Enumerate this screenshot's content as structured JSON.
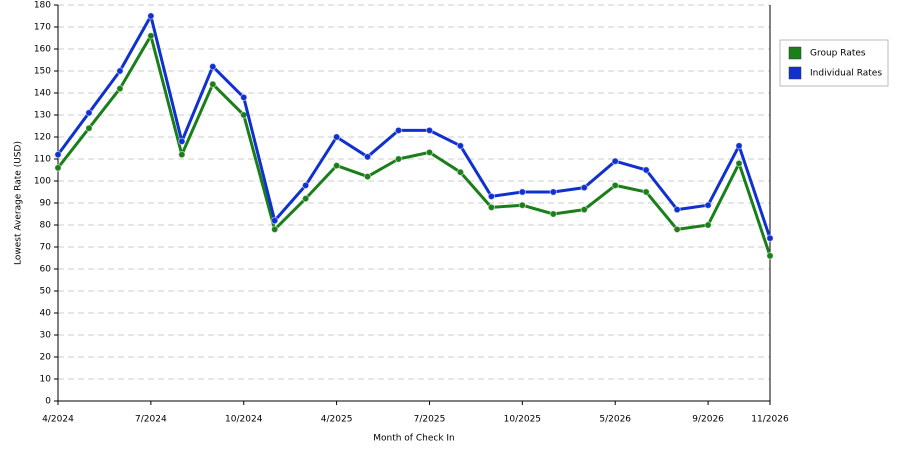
{
  "chart_data": {
    "type": "line",
    "xlabel": "Month of Check In",
    "ylabel": "Lowest Average Rate (USD)",
    "categories": [
      "4/2024",
      null,
      null,
      "7/2024",
      null,
      null,
      "10/2024",
      null,
      null,
      "4/2025",
      null,
      null,
      "7/2025",
      null,
      null,
      "10/2025",
      null,
      null,
      "5/2026",
      null,
      null,
      "9/2026",
      null,
      "11/2026"
    ],
    "series": [
      {
        "name": "Group Rates",
        "color": "#1a7f1a",
        "values": [
          106,
          124,
          142,
          166,
          112,
          144,
          130,
          78,
          92,
          107,
          102,
          110,
          113,
          104,
          88,
          89,
          85,
          87,
          98,
          95,
          78,
          80,
          108,
          66
        ]
      },
      {
        "name": "Individual Rates",
        "color": "#1030d0",
        "values": [
          112,
          131,
          150,
          175,
          118,
          152,
          138,
          82,
          98,
          120,
          111,
          123,
          123,
          116,
          93,
          95,
          95,
          97,
          109,
          105,
          87,
          89,
          116,
          74
        ]
      }
    ],
    "ylim": [
      0,
      180
    ],
    "yticks": [
      0,
      10,
      20,
      30,
      40,
      50,
      60,
      70,
      80,
      90,
      100,
      110,
      120,
      130,
      140,
      150,
      160,
      170,
      180
    ],
    "grid": true,
    "legend": "right"
  }
}
